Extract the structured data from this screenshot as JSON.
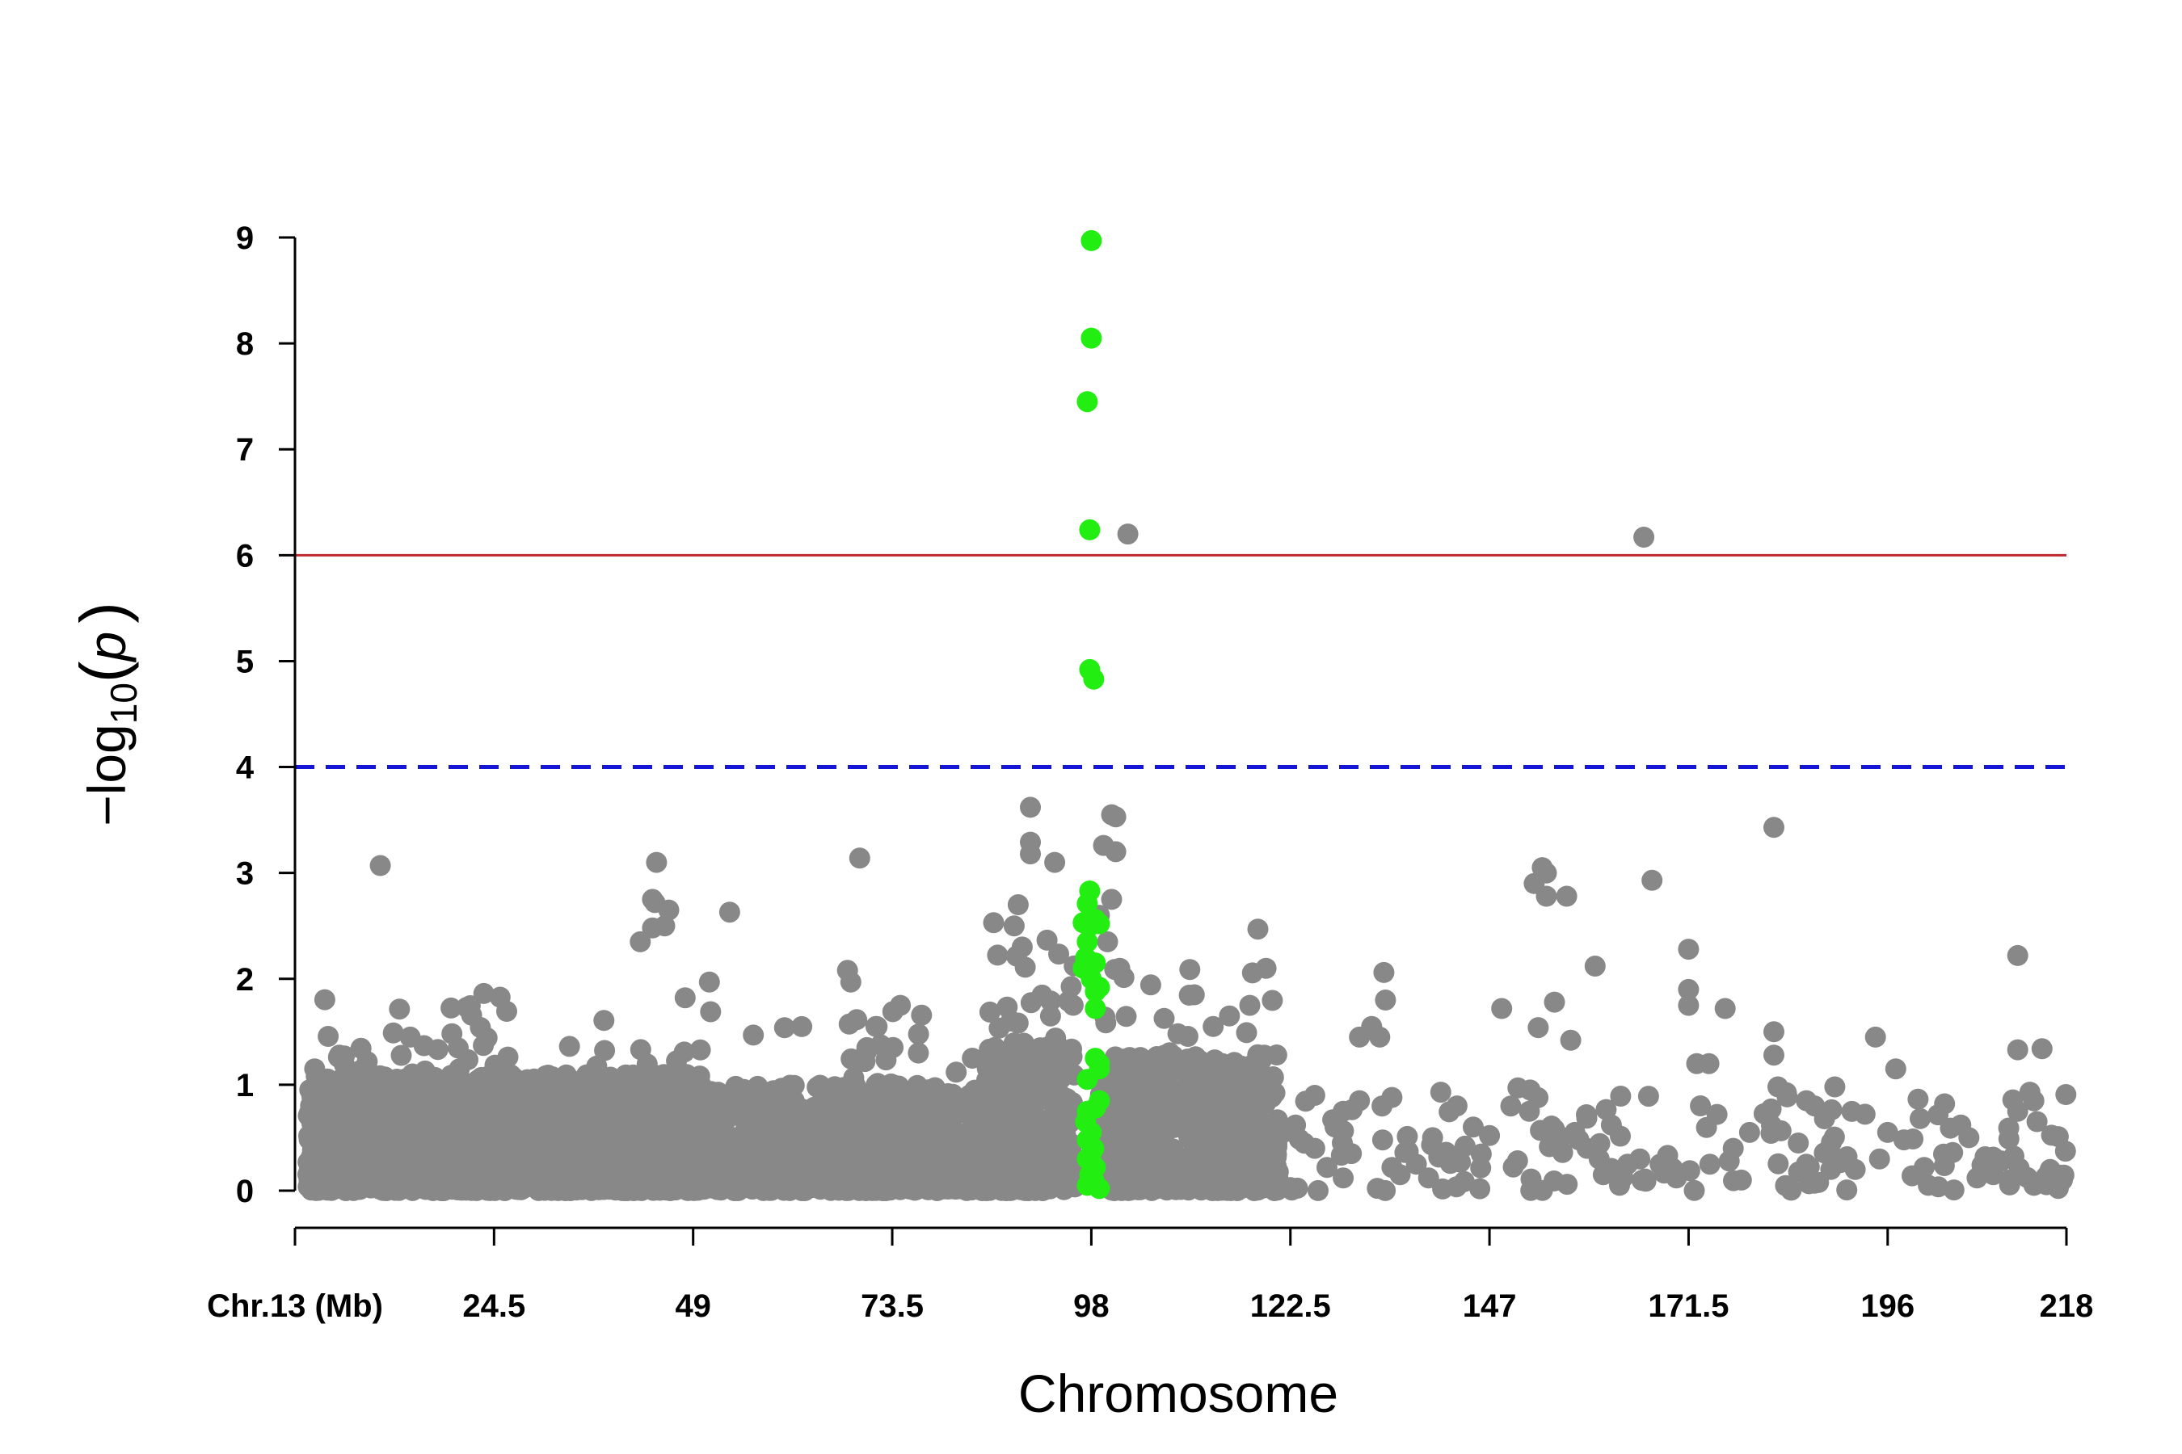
{
  "chart_data": {
    "type": "scatter",
    "title": "",
    "xlabel": "Chromosome",
    "ylabel": "-log10(p)",
    "ylabel_parts": {
      "prefix": "−log",
      "sub": "10",
      "open": "(",
      "var": "p",
      "close": ")"
    },
    "xlim": [
      0,
      218
    ],
    "ylim": [
      0,
      9
    ],
    "x_ticks": [
      {
        "value": 0,
        "label": "Chr.13 (Mb)"
      },
      {
        "value": 24.5,
        "label": "24.5"
      },
      {
        "value": 49,
        "label": "49"
      },
      {
        "value": 73.5,
        "label": "73.5"
      },
      {
        "value": 98,
        "label": "98"
      },
      {
        "value": 122.5,
        "label": "122.5"
      },
      {
        "value": 147,
        "label": "147"
      },
      {
        "value": 171.5,
        "label": "171.5"
      },
      {
        "value": 196,
        "label": "196"
      },
      {
        "value": 218,
        "label": "218"
      }
    ],
    "y_ticks": [
      0,
      1,
      2,
      3,
      4,
      5,
      6,
      7,
      8,
      9
    ],
    "thresholds": [
      {
        "value": 6,
        "color": "#c0282d",
        "style": "solid"
      },
      {
        "value": 4,
        "color": "#1515d6",
        "style": "dashed"
      }
    ],
    "colors": {
      "background_points": "#888888",
      "highlight_points": "#22ee11",
      "axis": "#000000"
    },
    "background_clusters": [
      {
        "x0": 1.5,
        "x1": 50,
        "ymax": 1.1,
        "n": 1500
      },
      {
        "x0": 1.5,
        "x1": 50,
        "ymax": 1.9,
        "n": 140
      },
      {
        "x0": 50,
        "x1": 85,
        "ymax": 1.0,
        "n": 650
      },
      {
        "x0": 50,
        "x1": 85,
        "ymax": 1.7,
        "n": 70
      },
      {
        "x0": 85,
        "x1": 96,
        "ymax": 1.4,
        "n": 320
      },
      {
        "x0": 85,
        "x1": 96,
        "ymax": 2.6,
        "n": 80
      },
      {
        "x0": 99,
        "x1": 121,
        "ymax": 1.3,
        "n": 520
      },
      {
        "x0": 99,
        "x1": 121,
        "ymax": 2.1,
        "n": 60
      },
      {
        "x0": 121,
        "x1": 218,
        "ymax": 0.95,
        "n": 120
      }
    ],
    "background_points": [
      [
        10.5,
        3.07
      ],
      [
        44.5,
        3.1
      ],
      [
        44,
        2.75
      ],
      [
        44.3,
        2.72
      ],
      [
        46,
        2.65
      ],
      [
        45.5,
        2.5
      ],
      [
        44,
        2.48
      ],
      [
        42.5,
        2.35
      ],
      [
        53.5,
        2.63
      ],
      [
        51,
        1.97
      ],
      [
        69.5,
        3.14
      ],
      [
        68,
        2.08
      ],
      [
        68.4,
        1.97
      ],
      [
        71.5,
        1.55
      ],
      [
        74.5,
        1.75
      ],
      [
        90.5,
        3.62
      ],
      [
        90.5,
        3.29
      ],
      [
        90.5,
        3.18
      ],
      [
        93.5,
        3.1
      ],
      [
        89,
        2.7
      ],
      [
        88.5,
        2.5
      ],
      [
        89.5,
        2.3
      ],
      [
        100.5,
        3.55
      ],
      [
        101,
        3.53
      ],
      [
        99.5,
        3.26
      ],
      [
        101,
        3.2
      ],
      [
        100.5,
        2.75
      ],
      [
        99,
        2.6
      ],
      [
        100,
        2.35
      ],
      [
        101.5,
        2.1
      ],
      [
        118.5,
        2.47
      ],
      [
        119.5,
        2.1
      ],
      [
        115,
        1.65
      ],
      [
        117.5,
        1.75
      ],
      [
        113,
        1.55
      ],
      [
        102.5,
        6.2
      ],
      [
        166,
        6.17
      ],
      [
        182,
        3.43
      ],
      [
        167,
        2.93
      ],
      [
        153.5,
        3.05
      ],
      [
        154,
        3.0
      ],
      [
        152.5,
        2.9
      ],
      [
        156.5,
        2.78
      ],
      [
        154,
        2.78
      ],
      [
        160,
        2.12
      ],
      [
        155,
        1.78
      ],
      [
        157,
        1.42
      ],
      [
        153,
        1.54
      ],
      [
        148.5,
        1.72
      ],
      [
        134,
        2.06
      ],
      [
        134.2,
        1.8
      ],
      [
        132.5,
        1.55
      ],
      [
        133.5,
        1.45
      ],
      [
        131,
        1.45
      ],
      [
        171.5,
        2.28
      ],
      [
        171.5,
        1.9
      ],
      [
        171.5,
        1.75
      ],
      [
        176,
        1.72
      ],
      [
        172.5,
        1.2
      ],
      [
        174,
        1.2
      ],
      [
        182,
        1.5
      ],
      [
        182,
        1.28
      ],
      [
        182.5,
        0.98
      ],
      [
        189.5,
        0.98
      ],
      [
        186,
        0.85
      ],
      [
        187,
        0.8
      ],
      [
        194.5,
        1.45
      ],
      [
        197,
        1.15
      ],
      [
        212,
        2.22
      ],
      [
        212,
        1.33
      ],
      [
        215,
        1.34
      ],
      [
        213.5,
        0.93
      ],
      [
        212,
        0.75
      ],
      [
        217,
        0.51
      ],
      [
        200,
        0.68
      ],
      [
        203,
        0.82
      ],
      [
        205,
        0.62
      ],
      [
        206,
        0.5
      ],
      [
        208,
        0.32
      ],
      [
        210,
        0.28
      ],
      [
        150.5,
        0.97
      ],
      [
        152,
        0.95
      ],
      [
        147,
        0.52
      ],
      [
        143,
        0.8
      ],
      [
        141,
        0.93
      ],
      [
        145,
        0.6
      ],
      [
        144,
        0.42
      ],
      [
        140,
        0.5
      ],
      [
        137,
        0.37
      ],
      [
        138,
        0.25
      ],
      [
        139.5,
        0.12
      ],
      [
        136,
        0.15
      ],
      [
        135,
        0.22
      ],
      [
        128,
        0.6
      ],
      [
        129,
        0.75
      ],
      [
        130,
        0.35
      ],
      [
        129,
        0.12
      ],
      [
        127,
        0.22
      ],
      [
        125.5,
        0.9
      ],
      [
        125.5,
        0.4
      ],
      [
        122.5,
        0.03
      ],
      [
        131,
        0.85
      ],
      [
        135,
        0.88
      ],
      [
        155,
        0.58
      ],
      [
        155.5,
        0.45
      ],
      [
        156,
        0.36
      ],
      [
        157.5,
        0.55
      ],
      [
        158,
        0.48
      ],
      [
        159,
        0.4
      ],
      [
        160.5,
        0.3
      ],
      [
        161,
        0.15
      ],
      [
        162,
        0.62
      ],
      [
        162,
        0.21
      ],
      [
        163,
        0.05
      ],
      [
        164,
        0.25
      ],
      [
        165.5,
        0.3
      ],
      [
        168,
        0.25
      ],
      [
        170,
        0.12
      ],
      [
        177,
        0.4
      ],
      [
        178,
        0.1
      ],
      [
        176.5,
        0.28
      ],
      [
        175,
        0.72
      ],
      [
        179,
        0.55
      ],
      [
        185,
        0.45
      ],
      [
        186,
        0.25
      ],
      [
        187,
        0.07
      ],
      [
        189,
        0.2
      ],
      [
        191,
        0.32
      ],
      [
        192,
        0.2
      ],
      [
        195,
        0.3
      ],
      [
        196,
        0.55
      ],
      [
        198,
        0.48
      ],
      [
        199,
        0.14
      ],
      [
        200.5,
        0.22
      ],
      [
        201,
        0.05
      ],
      [
        204,
        0.36
      ],
      [
        207,
        0.12
      ],
      [
        209,
        0.15
      ],
      [
        211,
        0.1
      ],
      [
        214,
        0.05
      ],
      [
        216,
        0.2
      ],
      [
        217.5,
        0.1
      ]
    ],
    "highlight_points": [
      [
        98,
        8.97
      ],
      [
        98,
        8.05
      ],
      [
        97.5,
        7.45
      ],
      [
        97.8,
        6.24
      ],
      [
        97.8,
        4.92
      ],
      [
        98.3,
        4.83
      ],
      [
        97.8,
        2.83
      ],
      [
        97.5,
        2.71
      ],
      [
        98.5,
        2.56
      ],
      [
        97,
        2.53
      ],
      [
        97.8,
        2.5
      ],
      [
        99,
        2.52
      ],
      [
        97.5,
        2.35
      ],
      [
        97.3,
        2.2
      ],
      [
        97,
        2.1
      ],
      [
        98.5,
        2.15
      ],
      [
        98,
        2.0
      ],
      [
        99,
        1.92
      ],
      [
        98.5,
        1.72
      ],
      [
        98.5,
        1.88
      ],
      [
        99,
        1.2
      ],
      [
        98.5,
        1.25
      ],
      [
        99,
        1.15
      ],
      [
        97.5,
        1.05
      ],
      [
        99,
        0.85
      ],
      [
        98.5,
        0.78
      ],
      [
        97.5,
        0.75
      ],
      [
        97.3,
        0.65
      ],
      [
        98,
        0.55
      ],
      [
        97.5,
        0.48
      ],
      [
        98.3,
        0.4
      ],
      [
        97.5,
        0.3
      ],
      [
        98.5,
        0.22
      ],
      [
        97.8,
        0.15
      ],
      [
        98.3,
        0.1
      ],
      [
        97.5,
        0.05
      ],
      [
        99,
        0.02
      ],
      [
        98,
        0.35
      ]
    ]
  }
}
